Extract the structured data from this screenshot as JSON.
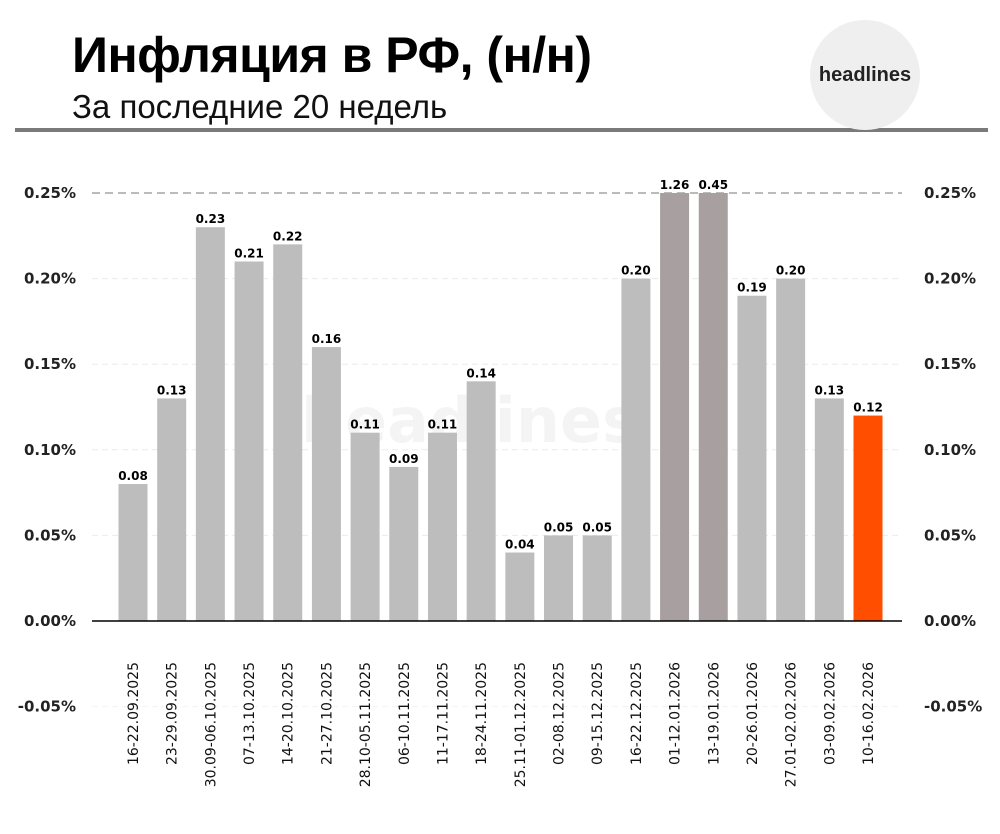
{
  "header": {
    "title": "Инфляция в РФ, (н/н)",
    "subtitle": "За последние 20 недель",
    "logo": "headlines"
  },
  "watermark": "headlines",
  "colors": {
    "bar": "#bdbdbd",
    "clipped": "#a8a0a0",
    "highlight": "#ff4e00"
  },
  "chart_data": {
    "type": "bar",
    "title": "Инфляция в РФ, (н/н)",
    "subtitle": "За последние 20 недель",
    "xlabel": "",
    "ylabel": "",
    "ylim": [
      -0.05,
      0.25
    ],
    "yticks": [
      -0.05,
      0.0,
      0.05,
      0.1,
      0.15,
      0.2,
      0.25
    ],
    "ytick_labels": [
      "-0.05%",
      "0.00%",
      "0.05%",
      "0.10%",
      "0.15%",
      "0.20%",
      "0.25%"
    ],
    "grid": true,
    "categories": [
      "16-22.09.2025",
      "23-29.09.2025",
      "30.09-06.10.2025",
      "07-13.10.2025",
      "14-20.10.2025",
      "21-27.10.2025",
      "28.10-05.11.2025",
      "06-10.11.2025",
      "11-17.11.2025",
      "18-24.11.2025",
      "25.11-01.12.2025",
      "02-08.12.2025",
      "09-15.12.2025",
      "16-22.12.2025",
      "01-12.01.2026",
      "13-19.01.2026",
      "20-26.01.2026",
      "27.01-02.02.2026",
      "03-09.02.2026",
      "10-16.02.2026"
    ],
    "values": [
      0.08,
      0.13,
      0.23,
      0.21,
      0.22,
      0.16,
      0.11,
      0.09,
      0.11,
      0.14,
      0.04,
      0.05,
      0.05,
      0.2,
      1.26,
      0.45,
      0.19,
      0.2,
      0.13,
      0.12
    ],
    "value_labels": [
      "0.08",
      "0.13",
      "0.23",
      "0.21",
      "0.22",
      "0.16",
      "0.11",
      "0.09",
      "0.11",
      "0.14",
      "0.04",
      "0.05",
      "0.05",
      "0.20",
      "1.26",
      "0.45",
      "0.19",
      "0.20",
      "0.13",
      "0.12"
    ],
    "clipped_indices": [
      14,
      15
    ],
    "highlight_index": 19
  }
}
